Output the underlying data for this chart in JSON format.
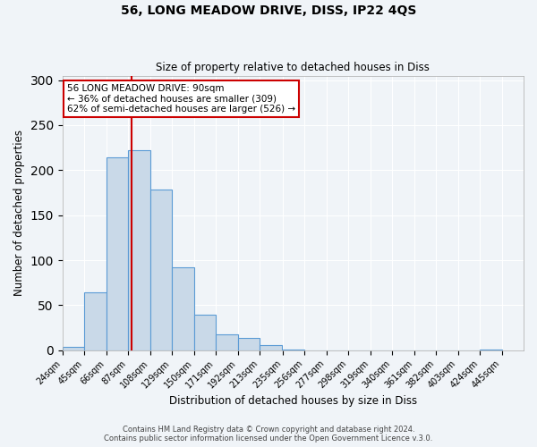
{
  "title1": "56, LONG MEADOW DRIVE, DISS, IP22 4QS",
  "title2": "Size of property relative to detached houses in Diss",
  "xlabel": "Distribution of detached houses by size in Diss",
  "ylabel": "Number of detached properties",
  "bar_values": [
    4,
    64,
    214,
    222,
    178,
    92,
    39,
    18,
    14,
    6,
    1,
    0,
    0,
    0,
    0,
    0,
    0,
    0,
    0,
    1
  ],
  "bin_labels": [
    "24sqm",
    "45sqm",
    "66sqm",
    "87sqm",
    "108sqm",
    "129sqm",
    "150sqm",
    "171sqm",
    "192sqm",
    "213sqm",
    "235sqm",
    "256sqm",
    "277sqm",
    "298sqm",
    "319sqm",
    "340sqm",
    "361sqm",
    "382sqm",
    "403sqm",
    "424sqm",
    "445sqm"
  ],
  "bin_edges": [
    24,
    45,
    66,
    87,
    108,
    129,
    150,
    171,
    192,
    213,
    235,
    256,
    277,
    298,
    319,
    340,
    361,
    382,
    403,
    424,
    445
  ],
  "bar_color": "#c9d9e8",
  "bar_edge_color": "#5b9bd5",
  "property_size": 90,
  "vline_color": "#cc0000",
  "annotation_title": "56 LONG MEADOW DRIVE: 90sqm",
  "annotation_line1": "← 36% of detached houses are smaller (309)",
  "annotation_line2": "62% of semi-detached houses are larger (526) →",
  "annotation_box_color": "#ffffff",
  "annotation_box_edge": "#cc0000",
  "ylim": [
    0,
    305
  ],
  "yticks": [
    0,
    50,
    100,
    150,
    200,
    250,
    300
  ],
  "footer1": "Contains HM Land Registry data © Crown copyright and database right 2024.",
  "footer2": "Contains public sector information licensed under the Open Government Licence v.3.0.",
  "background_color": "#f0f4f8"
}
